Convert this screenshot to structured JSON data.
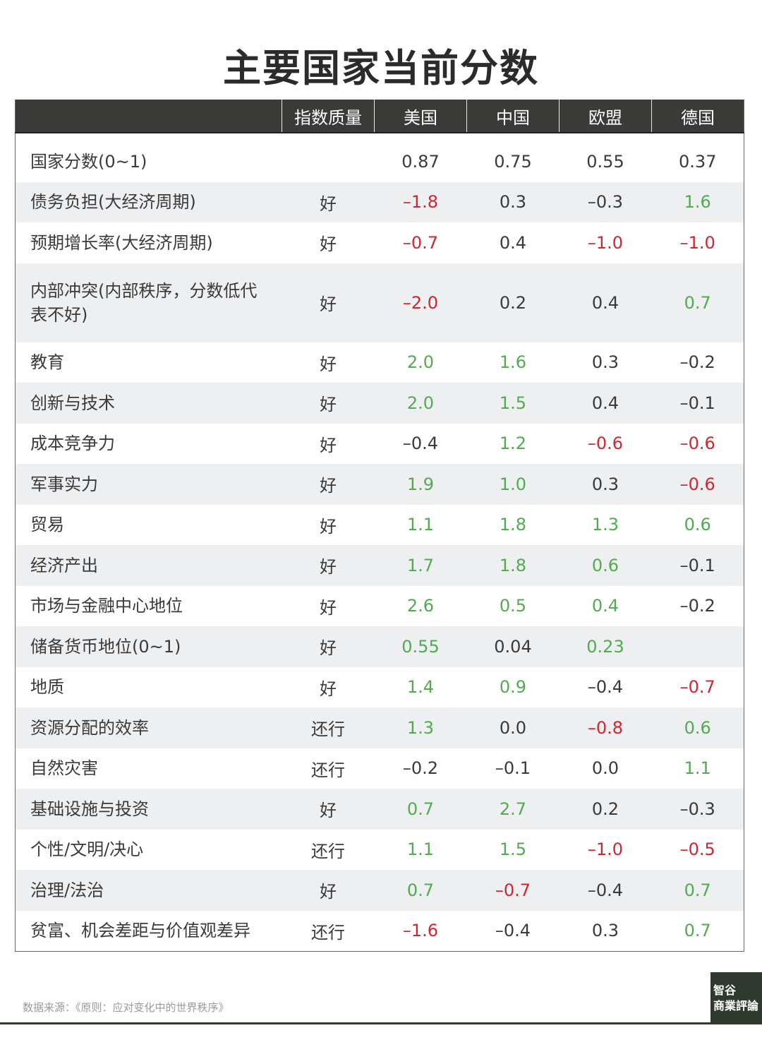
{
  "title": "主要国家当前分数",
  "headers": [
    "",
    "指数质量",
    "美国",
    "中国",
    "欧盟",
    "德国"
  ],
  "rows": [
    {
      "name": "国家分数(0~1)",
      "quality": "",
      "values": [
        [
          "0.87",
          "neu"
        ],
        [
          "0.75",
          "neu"
        ],
        [
          "0.55",
          "neu"
        ],
        [
          "0.37",
          "neu"
        ]
      ]
    },
    {
      "name": "债务负担(大经济周期)",
      "quality": "好",
      "values": [
        [
          "–1.8",
          "neg"
        ],
        [
          "0.3",
          "neu"
        ],
        [
          "–0.3",
          "neu"
        ],
        [
          "1.6",
          "pos"
        ]
      ]
    },
    {
      "name": "预期增长率(大经济周期)",
      "quality": "好",
      "values": [
        [
          "–0.7",
          "neg"
        ],
        [
          "0.4",
          "neu"
        ],
        [
          "–1.0",
          "neg"
        ],
        [
          "–1.0",
          "neg"
        ]
      ]
    },
    {
      "name": "内部冲突(内部秩序，分数低代表不好)",
      "quality": "好",
      "values": [
        [
          "–2.0",
          "neg"
        ],
        [
          "0.2",
          "neu"
        ],
        [
          "0.4",
          "neu"
        ],
        [
          "0.7",
          "pos"
        ]
      ]
    },
    {
      "name": "教育",
      "quality": "好",
      "values": [
        [
          "2.0",
          "pos"
        ],
        [
          "1.6",
          "pos"
        ],
        [
          "0.3",
          "neu"
        ],
        [
          "–0.2",
          "neu"
        ]
      ]
    },
    {
      "name": "创新与技术",
      "quality": "好",
      "values": [
        [
          "2.0",
          "pos"
        ],
        [
          "1.5",
          "pos"
        ],
        [
          "0.4",
          "neu"
        ],
        [
          "–0.1",
          "neu"
        ]
      ]
    },
    {
      "name": "成本竞争力",
      "quality": "好",
      "values": [
        [
          "–0.4",
          "neu"
        ],
        [
          "1.2",
          "pos"
        ],
        [
          "–0.6",
          "neg"
        ],
        [
          "–0.6",
          "neg"
        ]
      ]
    },
    {
      "name": "军事实力",
      "quality": "好",
      "values": [
        [
          "1.9",
          "pos"
        ],
        [
          "1.0",
          "pos"
        ],
        [
          "0.3",
          "neu"
        ],
        [
          "–0.6",
          "neg"
        ]
      ]
    },
    {
      "name": "贸易",
      "quality": "好",
      "values": [
        [
          "1.1",
          "pos"
        ],
        [
          "1.8",
          "pos"
        ],
        [
          "1.3",
          "pos"
        ],
        [
          "0.6",
          "pos"
        ]
      ]
    },
    {
      "name": "经济产出",
      "quality": "好",
      "values": [
        [
          "1.7",
          "pos"
        ],
        [
          "1.8",
          "pos"
        ],
        [
          "0.6",
          "pos"
        ],
        [
          "–0.1",
          "neu"
        ]
      ]
    },
    {
      "name": "市场与金融中心地位",
      "quality": "好",
      "values": [
        [
          "2.6",
          "pos"
        ],
        [
          "0.5",
          "pos"
        ],
        [
          "0.4",
          "pos"
        ],
        [
          "–0.2",
          "neu"
        ]
      ]
    },
    {
      "name": "储备货币地位(0~1)",
      "quality": "好",
      "values": [
        [
          "0.55",
          "pos"
        ],
        [
          "0.04",
          "neu"
        ],
        [
          "0.23",
          "pos"
        ],
        [
          "",
          "neu"
        ]
      ]
    },
    {
      "name": "地质",
      "quality": "好",
      "values": [
        [
          "1.4",
          "pos"
        ],
        [
          "0.9",
          "pos"
        ],
        [
          "–0.4",
          "neu"
        ],
        [
          "–0.7",
          "neg"
        ]
      ]
    },
    {
      "name": "资源分配的效率",
      "quality": "还行",
      "values": [
        [
          "1.3",
          "pos"
        ],
        [
          "0.0",
          "neu"
        ],
        [
          "–0.8",
          "neg"
        ],
        [
          "0.6",
          "pos"
        ]
      ]
    },
    {
      "name": "自然灾害",
      "quality": "还行",
      "values": [
        [
          "–0.2",
          "neu"
        ],
        [
          "–0.1",
          "neu"
        ],
        [
          "0.0",
          "neu"
        ],
        [
          "1.1",
          "pos"
        ]
      ]
    },
    {
      "name": "基础设施与投资",
      "quality": "好",
      "values": [
        [
          "0.7",
          "pos"
        ],
        [
          "2.7",
          "pos"
        ],
        [
          "0.2",
          "neu"
        ],
        [
          "–0.3",
          "neu"
        ]
      ]
    },
    {
      "name": "个性/文明/决心",
      "quality": "还行",
      "values": [
        [
          "1.1",
          "pos"
        ],
        [
          "1.5",
          "pos"
        ],
        [
          "–1.0",
          "neg"
        ],
        [
          "–0.5",
          "neg"
        ]
      ]
    },
    {
      "name": "治理/法治",
      "quality": "好",
      "values": [
        [
          "0.7",
          "pos"
        ],
        [
          "–0.7",
          "neg"
        ],
        [
          "–0.4",
          "neu"
        ],
        [
          "0.7",
          "pos"
        ]
      ]
    },
    {
      "name": "贫富、机会差距与价值观差异",
      "quality": "还行",
      "values": [
        [
          "–1.6",
          "neg"
        ],
        [
          "–0.4",
          "neu"
        ],
        [
          "0.3",
          "neu"
        ],
        [
          "0.7",
          "pos"
        ]
      ]
    }
  ],
  "source": "数据来源：《原则：应对变化中的世界秩序》",
  "logo": {
    "line1": "智谷",
    "line2": "商業評論"
  },
  "colors": {
    "positive": "#52ab4f",
    "negative": "#d4252f",
    "neutral": "#3a3a3a",
    "header_bg": "#3a3a38",
    "stripe": "#eeeff1"
  }
}
